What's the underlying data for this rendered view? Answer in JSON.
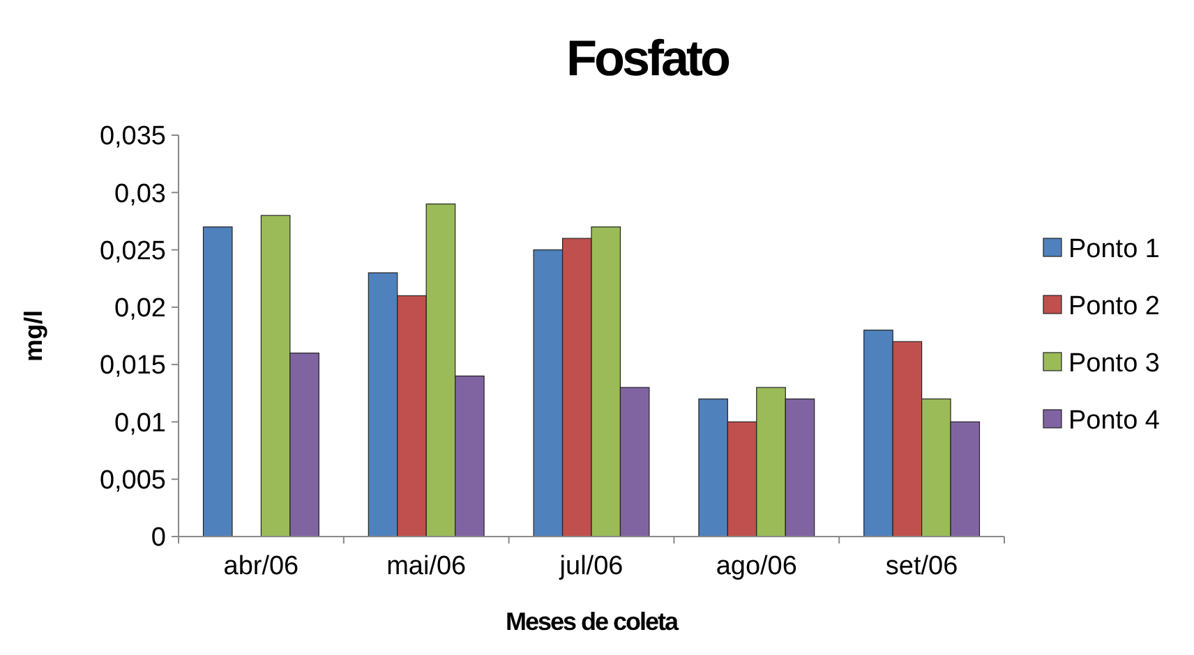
{
  "chart_data": {
    "type": "bar",
    "title": "Fosfato",
    "xlabel": "Meses de coleta",
    "ylabel": "mg/l",
    "categories": [
      "abr/06",
      "mai/06",
      "jul/06",
      "ago/06",
      "set/06"
    ],
    "series": [
      {
        "name": "Ponto 1",
        "color": "#4f81bd",
        "values": [
          0.027,
          0.023,
          0.025,
          0.012,
          0.018
        ]
      },
      {
        "name": "Ponto 2",
        "color": "#c0504d",
        "values": [
          null,
          0.021,
          0.026,
          0.01,
          0.017
        ]
      },
      {
        "name": "Ponto 3",
        "color": "#9bbb59",
        "values": [
          0.028,
          0.029,
          0.027,
          0.013,
          0.012
        ]
      },
      {
        "name": "Ponto 4",
        "color": "#8064a2",
        "values": [
          0.016,
          0.014,
          0.013,
          0.012,
          0.01
        ]
      }
    ],
    "ylim": [
      0,
      0.035
    ],
    "yticks": [
      {
        "value": 0,
        "label": "0"
      },
      {
        "value": 0.005,
        "label": "0,005"
      },
      {
        "value": 0.01,
        "label": "0,01"
      },
      {
        "value": 0.015,
        "label": "0,015"
      },
      {
        "value": 0.02,
        "label": "0,02"
      },
      {
        "value": 0.025,
        "label": "0,025"
      },
      {
        "value": 0.03,
        "label": "0,03"
      },
      {
        "value": 0.035,
        "label": "0,035"
      }
    ],
    "grid": false,
    "legend": "right"
  }
}
